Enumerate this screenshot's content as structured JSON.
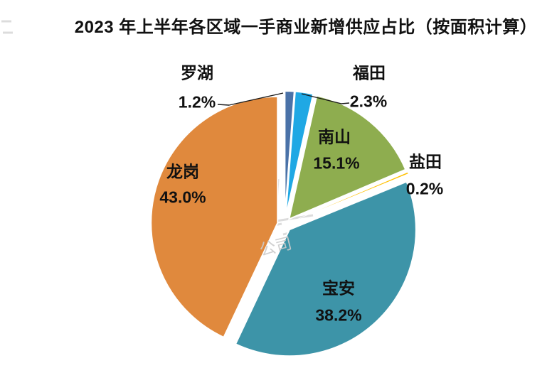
{
  "title": "2023 年上半年各区域一手商业新增供应占比（按面积计算）",
  "watermark": {
    "text": "公司"
  },
  "colors": {
    "background": "#ffffff",
    "text": "#111111",
    "leader_line": "#1a1a1a",
    "watermark": "#cccccc"
  },
  "chart_data": {
    "type": "pie",
    "title": "2023 年上半年各区域一手商业新增供应占比（按面积计算）",
    "unit": "percent",
    "start_angle_deg": 0,
    "direction": "clockwise",
    "exploded": true,
    "legend": "none (direct labels)",
    "slices": [
      {
        "id": "luohu",
        "name": "罗湖",
        "value": 1.2,
        "label": "1.2%",
        "color": "#4a72a8",
        "label_placement": "outside-left",
        "leader_line": true
      },
      {
        "id": "futian",
        "name": "福田",
        "value": 2.3,
        "label": "2.3%",
        "color": "#1fa8e4",
        "label_placement": "outside-right",
        "leader_line": true
      },
      {
        "id": "nanshan",
        "name": "南山",
        "value": 15.1,
        "label": "15.1%",
        "color": "#8ead4f",
        "label_placement": "inside",
        "leader_line": false
      },
      {
        "id": "yantian",
        "name": "盐田",
        "value": 0.2,
        "label": "0.2%",
        "color": "#ffc000",
        "label_placement": "outside-right",
        "leader_line": false
      },
      {
        "id": "baoan",
        "name": "宝安",
        "value": 38.2,
        "label": "38.2%",
        "color": "#3d94a8",
        "label_placement": "inside",
        "leader_line": false
      },
      {
        "id": "longgang",
        "name": "龙岗",
        "value": 43.0,
        "label": "43.0%",
        "color": "#e0893d",
        "label_placement": "inside",
        "leader_line": false
      }
    ]
  }
}
